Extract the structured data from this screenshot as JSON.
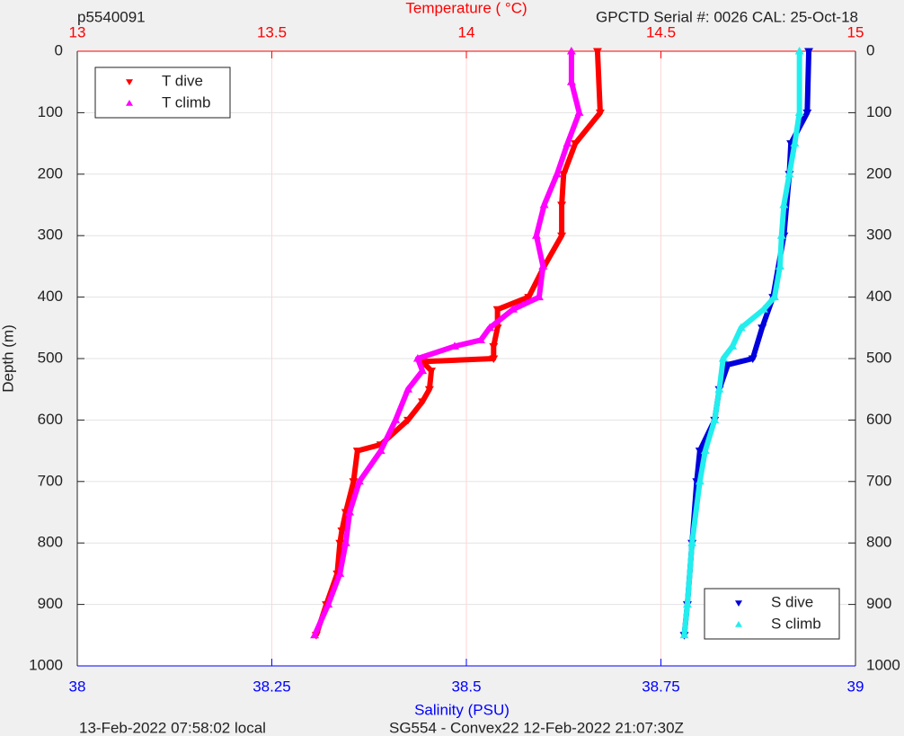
{
  "chart_data": {
    "type": "profile",
    "title_left": "p5540091",
    "title_right": "GPCTD Serial #: 0026 CAL: 25-Oct-18",
    "x2label": "Temperature (    °C)",
    "xlabel": "Salinity (PSU)",
    "ylabel": "Depth (m)",
    "footer_left": "13-Feb-2022 07:58:02 local",
    "footer_right": "SG554 - Convex22 12-Feb-2022 21:07:30Z",
    "xlim": [
      38,
      39
    ],
    "xticks": [
      38,
      38.25,
      38.5,
      38.75,
      39
    ],
    "x_color": "#0000ff",
    "x2lim": [
      13,
      15
    ],
    "x2ticks": [
      13,
      13.5,
      14,
      14.5,
      15
    ],
    "x2_color": "#ff0000",
    "ylim": [
      1000,
      0
    ],
    "yticks": [
      0,
      100,
      200,
      300,
      400,
      500,
      600,
      700,
      800,
      900,
      1000
    ],
    "grid": true,
    "series": [
      {
        "name": "T dive",
        "color": "#ff0000",
        "marker": "down",
        "axis": "x2",
        "legend": "upper left",
        "x": [
          14.337,
          14.344,
          14.28,
          14.25,
          14.245,
          14.245,
          14.2,
          14.16,
          14.08,
          14.08,
          14.07,
          14.07,
          13.887,
          13.91,
          13.905,
          13.887,
          13.85,
          13.78,
          13.72,
          13.71,
          13.69,
          13.68,
          13.675,
          13.668,
          13.64,
          13.614
        ],
        "y": [
          0,
          100,
          150,
          200,
          250,
          300,
          350,
          400,
          420,
          450,
          480,
          500,
          505,
          520,
          550,
          570,
          600,
          640,
          650,
          700,
          750,
          780,
          800,
          850,
          900,
          950
        ]
      },
      {
        "name": "T climb",
        "color": "#ff00ff",
        "marker": "up",
        "axis": "x2",
        "legend": "upper left",
        "x": [
          14.27,
          14.27,
          14.29,
          14.26,
          14.233,
          14.2,
          14.18,
          14.197,
          14.187,
          14.12,
          14.06,
          14.037,
          13.97,
          13.875,
          13.887,
          13.85,
          13.818,
          13.78,
          13.725,
          13.7,
          13.69,
          13.675,
          13.645,
          13.61
        ],
        "y": [
          0,
          50,
          100,
          150,
          200,
          250,
          300,
          350,
          400,
          420,
          450,
          470,
          480,
          500,
          520,
          550,
          600,
          650,
          700,
          750,
          800,
          850,
          900,
          950
        ]
      },
      {
        "name": "S dive",
        "color": "#0000dd",
        "marker": "down",
        "legend": "lower right",
        "x": [
          38.94,
          38.938,
          38.917,
          38.915,
          38.908,
          38.894,
          38.88,
          38.868,
          38.836,
          38.825,
          38.819,
          38.8,
          38.796,
          38.79,
          38.784,
          38.78
        ],
        "y": [
          0,
          100,
          150,
          200,
          300,
          400,
          450,
          500,
          510,
          550,
          600,
          650,
          700,
          800,
          900,
          950
        ]
      },
      {
        "name": "S climb",
        "color": "#22eeee",
        "marker": "up",
        "legend": "lower right",
        "x": [
          38.928,
          38.928,
          38.922,
          38.915,
          38.908,
          38.905,
          38.903,
          38.896,
          38.882,
          38.853,
          38.842,
          38.83,
          38.825,
          38.819,
          38.807,
          38.8,
          38.79,
          38.784,
          38.78
        ],
        "y": [
          0,
          100,
          150,
          200,
          250,
          300,
          350,
          400,
          420,
          450,
          480,
          500,
          550,
          600,
          650,
          700,
          800,
          900,
          950
        ]
      }
    ]
  }
}
